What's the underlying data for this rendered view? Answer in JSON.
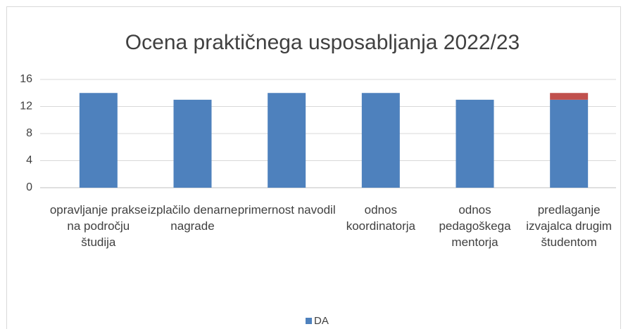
{
  "chart_data": {
    "type": "bar",
    "stacked": true,
    "title": "Ocena praktičnega usposabljanja 2022/23",
    "categories": [
      "opravljanje prakse na področju študija",
      "izplačilo denarne nagrade",
      "primernost navodil",
      "odnos koordinatorja",
      "odnos pedagoškega mentorja",
      "predlaganje izvajalca drugim študentom"
    ],
    "series": [
      {
        "name": "DA",
        "color": "#4e81bd",
        "values": [
          14,
          13,
          14,
          14,
          13,
          13
        ]
      },
      {
        "color": "#c0504d",
        "values": [
          0,
          0,
          0,
          0,
          0,
          1
        ]
      }
    ],
    "ylim": [
      0,
      16
    ],
    "yticks": [
      0,
      4,
      8,
      12,
      16
    ],
    "grid": true,
    "legend": "bottom"
  }
}
